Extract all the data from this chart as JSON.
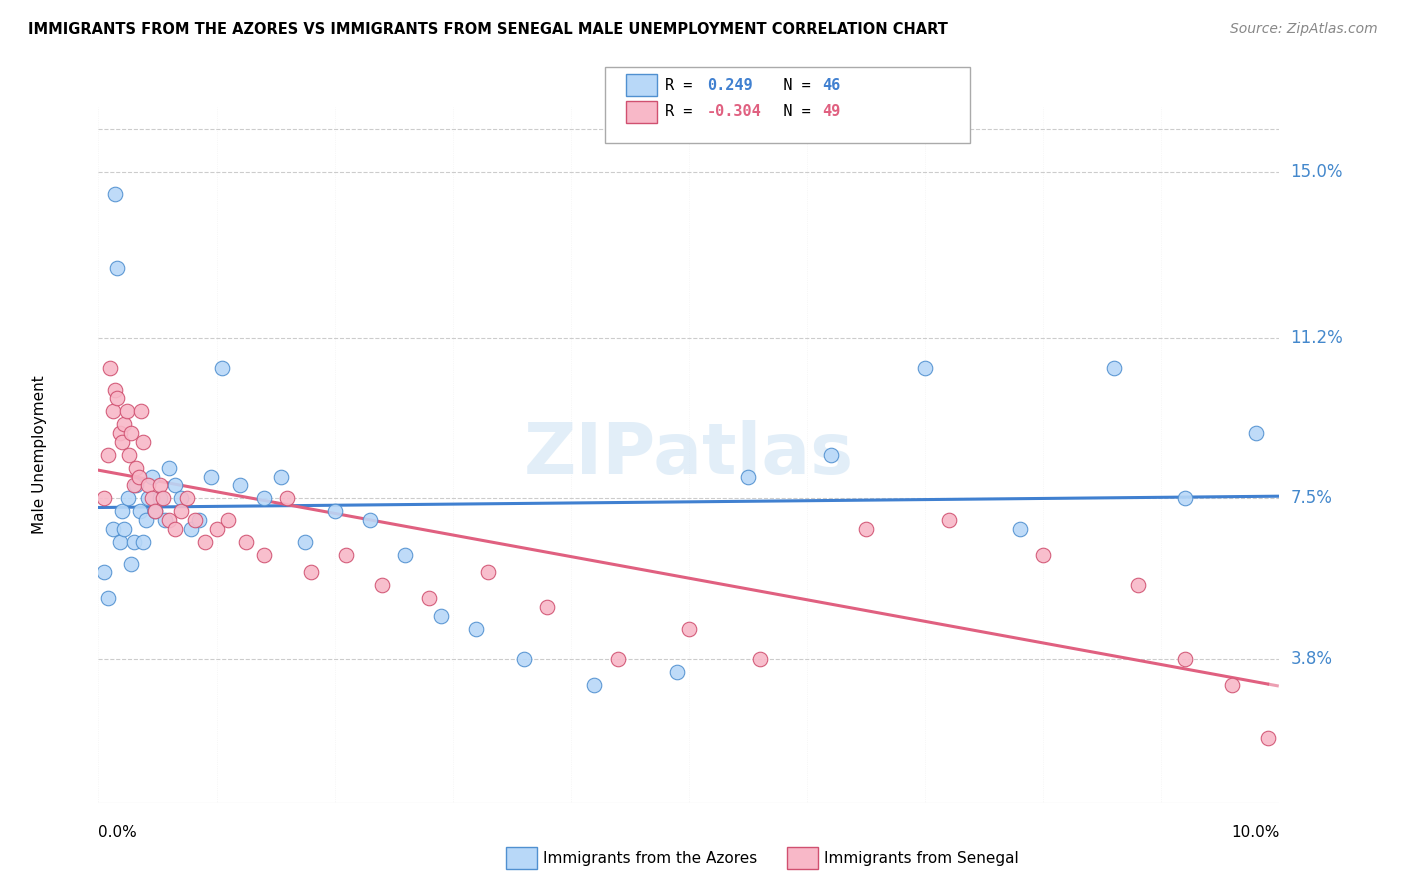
{
  "title": "IMMIGRANTS FROM THE AZORES VS IMMIGRANTS FROM SENEGAL MALE UNEMPLOYMENT CORRELATION CHART",
  "source": "Source: ZipAtlas.com",
  "ylabel": "Male Unemployment",
  "yticks": [
    3.8,
    7.5,
    11.2,
    15.0
  ],
  "ytick_labels": [
    "3.8%",
    "7.5%",
    "11.2%",
    "15.0%"
  ],
  "xtick_labels": [
    "0.0%",
    "10.0%"
  ],
  "xmin": 0.0,
  "xmax": 10.0,
  "ymin": 0.5,
  "ymax": 16.5,
  "legend_azores": "Immigrants from the Azores",
  "legend_senegal": "Immigrants from Senegal",
  "R_azores": 0.249,
  "N_azores": 46,
  "R_senegal": -0.304,
  "N_senegal": 49,
  "color_azores_fill": "#b8d8f8",
  "color_azores_edge": "#5090d0",
  "color_senegal_fill": "#f8b8c8",
  "color_senegal_edge": "#d05070",
  "color_azores_line": "#4080d0",
  "color_senegal_line": "#e06080",
  "watermark": "ZIPatlas",
  "azores_x": [
    0.05,
    0.08,
    0.12,
    0.14,
    0.16,
    0.18,
    0.2,
    0.22,
    0.25,
    0.28,
    0.3,
    0.32,
    0.35,
    0.38,
    0.4,
    0.42,
    0.45,
    0.48,
    0.52,
    0.56,
    0.6,
    0.65,
    0.7,
    0.78,
    0.85,
    0.95,
    1.05,
    1.2,
    1.4,
    1.55,
    1.75,
    2.0,
    2.3,
    2.6,
    2.9,
    3.2,
    3.6,
    4.2,
    4.9,
    5.5,
    6.2,
    7.0,
    7.8,
    8.6,
    9.2,
    9.8
  ],
  "azores_y": [
    5.8,
    5.2,
    6.8,
    14.5,
    12.8,
    6.5,
    7.2,
    6.8,
    7.5,
    6.0,
    6.5,
    7.8,
    7.2,
    6.5,
    7.0,
    7.5,
    8.0,
    7.2,
    7.5,
    7.0,
    8.2,
    7.8,
    7.5,
    6.8,
    7.0,
    8.0,
    10.5,
    7.8,
    7.5,
    8.0,
    6.5,
    7.2,
    7.0,
    6.2,
    4.8,
    4.5,
    3.8,
    3.2,
    3.5,
    8.0,
    8.5,
    10.5,
    6.8,
    10.5,
    7.5,
    9.0
  ],
  "senegal_x": [
    0.05,
    0.08,
    0.1,
    0.12,
    0.14,
    0.16,
    0.18,
    0.2,
    0.22,
    0.24,
    0.26,
    0.28,
    0.3,
    0.32,
    0.34,
    0.36,
    0.38,
    0.42,
    0.45,
    0.48,
    0.52,
    0.55,
    0.6,
    0.65,
    0.7,
    0.75,
    0.82,
    0.9,
    1.0,
    1.1,
    1.25,
    1.4,
    1.6,
    1.8,
    2.1,
    2.4,
    2.8,
    3.3,
    3.8,
    4.4,
    5.0,
    5.6,
    6.5,
    7.2,
    8.0,
    8.8,
    9.2,
    9.6,
    9.9
  ],
  "senegal_y": [
    7.5,
    8.5,
    10.5,
    9.5,
    10.0,
    9.8,
    9.0,
    8.8,
    9.2,
    9.5,
    8.5,
    9.0,
    7.8,
    8.2,
    8.0,
    9.5,
    8.8,
    7.8,
    7.5,
    7.2,
    7.8,
    7.5,
    7.0,
    6.8,
    7.2,
    7.5,
    7.0,
    6.5,
    6.8,
    7.0,
    6.5,
    6.2,
    7.5,
    5.8,
    6.2,
    5.5,
    5.2,
    5.8,
    5.0,
    3.8,
    4.5,
    3.8,
    6.8,
    7.0,
    6.2,
    5.5,
    3.8,
    3.2,
    2.0
  ]
}
